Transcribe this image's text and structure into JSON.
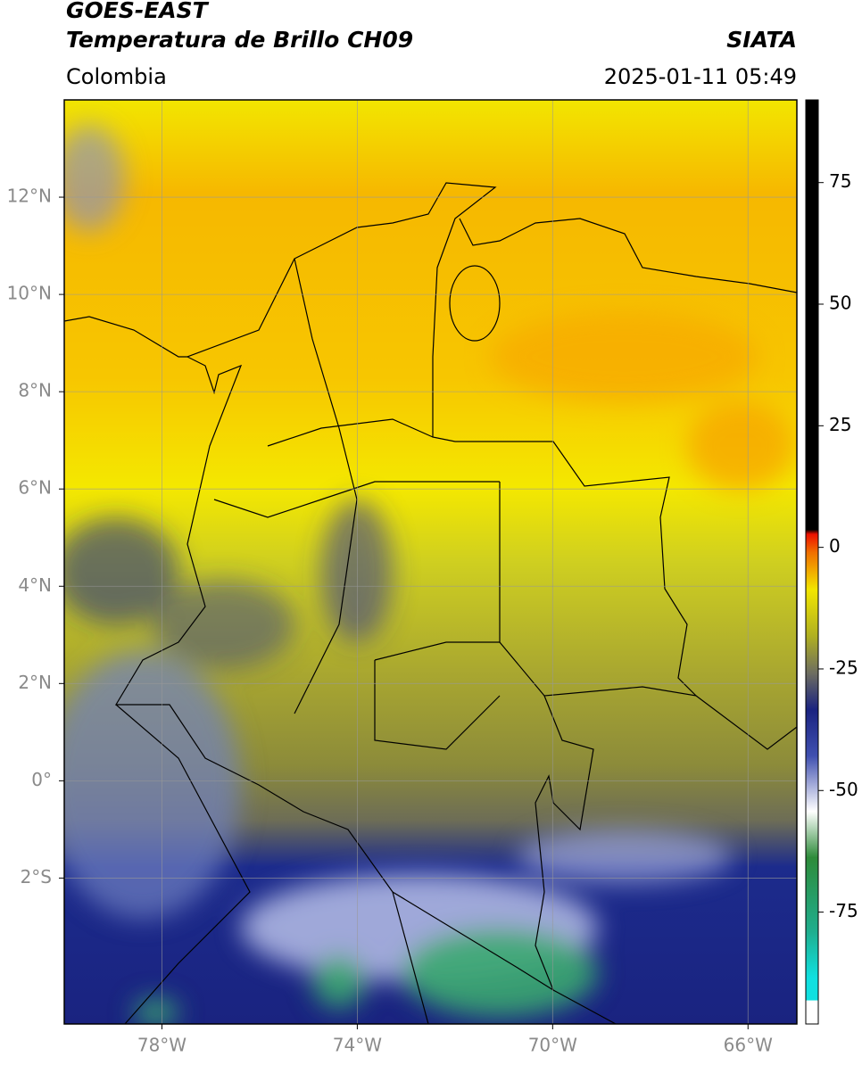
{
  "header": {
    "title": "GOES-EAST",
    "subtitle": "Temperatura de Brillo CH09",
    "source": "SIATA",
    "region": "Colombia",
    "datetime": "2025-01-11 05:49"
  },
  "map": {
    "xlim": [
      -80,
      -65
    ],
    "ylim": [
      -5,
      14
    ],
    "xticks": [
      {
        "value": -78,
        "label": "78°W"
      },
      {
        "value": -74,
        "label": "74°W"
      },
      {
        "value": -70,
        "label": "70°W"
      },
      {
        "value": -66,
        "label": "66°W"
      }
    ],
    "yticks": [
      {
        "value": 12,
        "label": "12°N"
      },
      {
        "value": 10,
        "label": "10°N"
      },
      {
        "value": 8,
        "label": "8°N"
      },
      {
        "value": 6,
        "label": "6°N"
      },
      {
        "value": 4,
        "label": "4°N"
      },
      {
        "value": 2,
        "label": "2°N"
      },
      {
        "value": 0,
        "label": "0°"
      },
      {
        "value": -2,
        "label": "2°S"
      }
    ],
    "grid": true
  },
  "colorbar": {
    "lim": [
      -98,
      92
    ],
    "ticks": [
      75,
      50,
      25,
      0,
      -25,
      -50,
      -75
    ]
  }
}
